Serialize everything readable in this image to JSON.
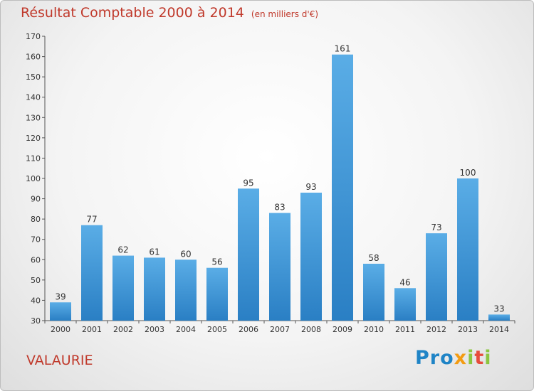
{
  "header": {
    "title": "Résultat Comptable 2000 à 2014",
    "subtitle": "(en milliers d'€)"
  },
  "footer": {
    "commune": "VALAURIE",
    "logo": {
      "p1": "Pro",
      "p2": "x",
      "p3": "i",
      "p4": "t",
      "p5": "i"
    }
  },
  "colors": {
    "bar": "#3f96db",
    "bar_light": "#5aade6",
    "bar_dark": "#2a7fc4",
    "title": "#c0392b"
  },
  "chart_data": {
    "type": "bar",
    "title": "Résultat Comptable 2000 à 2014",
    "xlabel": "",
    "ylabel": "",
    "ylim": [
      30,
      170
    ],
    "yticks": [
      30,
      40,
      50,
      60,
      70,
      80,
      90,
      100,
      110,
      120,
      130,
      140,
      150,
      160,
      170
    ],
    "categories": [
      "2000",
      "2001",
      "2002",
      "2003",
      "2004",
      "2005",
      "2006",
      "2007",
      "2008",
      "2009",
      "2010",
      "2011",
      "2012",
      "2013",
      "2014"
    ],
    "values": [
      39,
      77,
      62,
      61,
      60,
      56,
      95,
      83,
      93,
      161,
      58,
      46,
      73,
      100,
      33
    ],
    "grid": false,
    "legend": "none"
  }
}
